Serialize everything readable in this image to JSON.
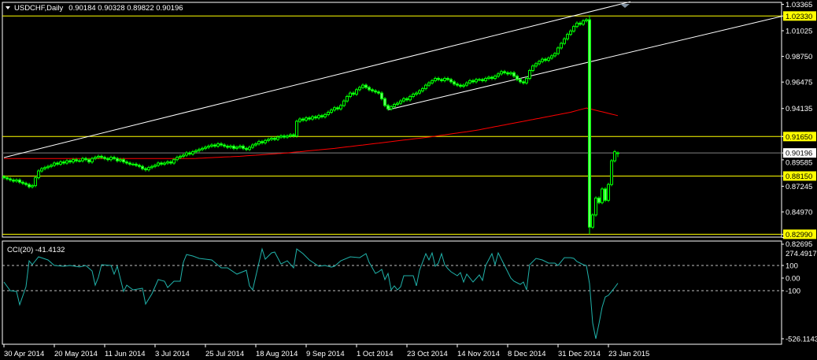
{
  "header": {
    "symbol_timeframe": "USDCHF,Daily",
    "ohlc": "0.90184 0.90328 0.89822 0.90196",
    "menu_icon": "triangle-down-icon"
  },
  "indicator": {
    "label": "CCI(20) -41.4132"
  },
  "colors": {
    "background": "#000000",
    "candle": "#00ff00",
    "moving_average": "#ff0000",
    "horizontal_levels": "#ffff00",
    "bid_line": "#808080",
    "channel": "#ffffff",
    "cci": "#20b2aa",
    "grid_levels": "#c0c0c0"
  },
  "chart_data": [
    {
      "type": "candlestick",
      "title": "USDCHF,Daily",
      "x_tick_labels": [
        "30 Apr 2014",
        "20 May 2014",
        "11 Jun 2014",
        "3 Jul 2014",
        "25 Jul 2014",
        "18 Aug 2014",
        "9 Sep 2014",
        "1 Oct 2014",
        "23 Oct 2014",
        "14 Nov 2014",
        "8 Dec 2014",
        "31 Dec 2014",
        "23 Jan 2015"
      ],
      "y_tick_labels": [
        "1.03365",
        "1.01025",
        "0.98750",
        "0.96475",
        "0.94135",
        "0.91650",
        "0.89585",
        "0.87245",
        "0.84970",
        "0.82695"
      ],
      "ylim": [
        0.82695,
        1.03365
      ],
      "closes": [
        0.88,
        0.879,
        0.878,
        0.877,
        0.878,
        0.876,
        0.875,
        0.874,
        0.872,
        0.873,
        0.88,
        0.886,
        0.888,
        0.889,
        0.89,
        0.891,
        0.893,
        0.892,
        0.894,
        0.893,
        0.895,
        0.894,
        0.896,
        0.895,
        0.895,
        0.897,
        0.896,
        0.894,
        0.897,
        0.898,
        0.899,
        0.898,
        0.897,
        0.896,
        0.898,
        0.897,
        0.895,
        0.896,
        0.894,
        0.893,
        0.892,
        0.892,
        0.891,
        0.89,
        0.888,
        0.887,
        0.889,
        0.89,
        0.891,
        0.893,
        0.892,
        0.893,
        0.894,
        0.893,
        0.896,
        0.898,
        0.899,
        0.9,
        0.902,
        0.901,
        0.903,
        0.904,
        0.905,
        0.906,
        0.907,
        0.908,
        0.909,
        0.908,
        0.91,
        0.909,
        0.908,
        0.907,
        0.908,
        0.906,
        0.907,
        0.908,
        0.906,
        0.905,
        0.907,
        0.909,
        0.91,
        0.912,
        0.911,
        0.913,
        0.914,
        0.915,
        0.914,
        0.916,
        0.917,
        0.916,
        0.917,
        0.918,
        0.917,
        0.93,
        0.932,
        0.931,
        0.933,
        0.932,
        0.934,
        0.933,
        0.935,
        0.934,
        0.936,
        0.938,
        0.94,
        0.942,
        0.941,
        0.944,
        0.948,
        0.952,
        0.955,
        0.954,
        0.958,
        0.96,
        0.962,
        0.96,
        0.958,
        0.957,
        0.956,
        0.955,
        0.95,
        0.944,
        0.941,
        0.943,
        0.945,
        0.946,
        0.948,
        0.95,
        0.949,
        0.952,
        0.954,
        0.955,
        0.957,
        0.959,
        0.962,
        0.964,
        0.966,
        0.968,
        0.967,
        0.966,
        0.968,
        0.967,
        0.965,
        0.963,
        0.962,
        0.961,
        0.962,
        0.964,
        0.966,
        0.965,
        0.967,
        0.967,
        0.966,
        0.968,
        0.969,
        0.968,
        0.97,
        0.972,
        0.974,
        0.973,
        0.972,
        0.973,
        0.97,
        0.967,
        0.965,
        0.964,
        0.968,
        0.975,
        0.979,
        0.981,
        0.983,
        0.985,
        0.984,
        0.986,
        0.988,
        0.99,
        0.995,
        0.999,
        1.003,
        1.007,
        1.01,
        1.014,
        1.017,
        1.016,
        1.019,
        1.02,
        0.8362,
        0.847,
        0.862,
        0.858,
        0.87,
        0.86,
        0.874,
        0.895,
        0.903,
        0.90196
      ],
      "last_candle": {
        "open": 0.90184,
        "high": 0.90328,
        "low": 0.89822,
        "close": 0.90196
      },
      "crash_candle": {
        "open": 1.02,
        "high": 1.024,
        "low": 0.83,
        "close": 0.8362
      },
      "moving_average": [
        [
          0,
          0.897
        ],
        [
          30,
          0.897
        ],
        [
          60,
          0.897
        ],
        [
          75,
          0.899
        ],
        [
          90,
          0.902
        ],
        [
          105,
          0.906
        ],
        [
          120,
          0.911
        ],
        [
          135,
          0.916
        ],
        [
          150,
          0.922
        ],
        [
          165,
          0.93
        ],
        [
          180,
          0.938
        ],
        [
          185,
          0.9418
        ],
        [
          195,
          0.935
        ]
      ],
      "horizontal_levels": [
        {
          "price": "1.02330",
          "value": 1.0233
        },
        {
          "price": "0.91650",
          "value": 0.9165
        },
        {
          "price": "0.88150",
          "value": 0.8815
        },
        {
          "price": "0.82990",
          "value": 0.8299
        }
      ],
      "bid_line": {
        "price": "0.90196",
        "value": 0.90196
      },
      "channel_lines": [
        [
          [
            0,
            0.8979
          ],
          [
            199,
            1.036
          ]
        ],
        [
          [
            122,
            0.9402
          ],
          [
            247,
            1.023
          ]
        ]
      ]
    },
    {
      "type": "line",
      "title": "CCI(20) -41.4132",
      "y_tick_labels": [
        "274.4917",
        "100",
        "0.00",
        "-100",
        "-526.1143"
      ],
      "ylim": [
        -526.1143,
        274.4917
      ],
      "levels": [
        100,
        -100
      ],
      "points": [
        [
          0,
          -31
        ],
        [
          2,
          -100
        ],
        [
          4,
          -106
        ],
        [
          5,
          -212
        ],
        [
          7,
          -69
        ],
        [
          8,
          137
        ],
        [
          9,
          106
        ],
        [
          11,
          169
        ],
        [
          14,
          144
        ],
        [
          16,
          100
        ],
        [
          19,
          94
        ],
        [
          21,
          100
        ],
        [
          24,
          88
        ],
        [
          26,
          100
        ],
        [
          28,
          56
        ],
        [
          29,
          -56
        ],
        [
          30,
          6
        ],
        [
          31,
          106
        ],
        [
          34,
          100
        ],
        [
          35,
          31
        ],
        [
          36,
          94
        ],
        [
          38,
          -106
        ],
        [
          39,
          -56
        ],
        [
          41,
          -94
        ],
        [
          44,
          -81
        ],
        [
          45,
          -206
        ],
        [
          47,
          -125
        ],
        [
          49,
          -12
        ],
        [
          51,
          -25
        ],
        [
          52,
          -75
        ],
        [
          54,
          -25
        ],
        [
          56,
          -25
        ],
        [
          57,
          125
        ],
        [
          58,
          187
        ],
        [
          60,
          175
        ],
        [
          62,
          156
        ],
        [
          66,
          144
        ],
        [
          69,
          81
        ],
        [
          71,
          81
        ],
        [
          74,
          31
        ],
        [
          77,
          62
        ],
        [
          78,
          -62
        ],
        [
          79,
          -94
        ],
        [
          82,
          231
        ],
        [
          83,
          150
        ],
        [
          85,
          200
        ],
        [
          86,
          206
        ],
        [
          88,
          112
        ],
        [
          90,
          137
        ],
        [
          92,
          81
        ],
        [
          93,
          231
        ],
        [
          95,
          194
        ],
        [
          97,
          144
        ],
        [
          100,
          94
        ],
        [
          102,
          100
        ],
        [
          104,
          87
        ],
        [
          105,
          94
        ],
        [
          107,
          137
        ],
        [
          110,
          169
        ],
        [
          113,
          162
        ],
        [
          115,
          194
        ],
        [
          116,
          125
        ],
        [
          117,
          81
        ],
        [
          118,
          37
        ],
        [
          119,
          50
        ],
        [
          120,
          69
        ],
        [
          121,
          -12
        ],
        [
          122,
          37
        ],
        [
          123,
          -94
        ],
        [
          124,
          -62
        ],
        [
          125,
          -94
        ],
        [
          126,
          -69
        ],
        [
          127,
          19
        ],
        [
          130,
          19
        ],
        [
          131,
          -62
        ],
        [
          132,
          62
        ],
        [
          134,
          194
        ],
        [
          135,
          144
        ],
        [
          136,
          200
        ],
        [
          137,
          94
        ],
        [
          138,
          119
        ],
        [
          139,
          194
        ],
        [
          140,
          106
        ],
        [
          141,
          75
        ],
        [
          142,
          50
        ],
        [
          144,
          19
        ],
        [
          145,
          44
        ],
        [
          146,
          -31
        ],
        [
          147,
          31
        ],
        [
          149,
          -31
        ],
        [
          151,
          25
        ],
        [
          152,
          -19
        ],
        [
          153,
          100
        ],
        [
          155,
          194
        ],
        [
          156,
          106
        ],
        [
          157,
          200
        ],
        [
          159,
          100
        ],
        [
          161,
          0
        ],
        [
          162,
          -25
        ],
        [
          164,
          -50
        ],
        [
          165,
          -31
        ],
        [
          166,
          -94
        ],
        [
          167,
          106
        ],
        [
          169,
          156
        ],
        [
          171,
          144
        ],
        [
          173,
          119
        ],
        [
          175,
          119
        ],
        [
          176,
          100
        ],
        [
          178,
          162
        ],
        [
          180,
          162
        ],
        [
          181,
          156
        ],
        [
          182,
          131
        ],
        [
          184,
          106
        ],
        [
          185,
          100
        ],
        [
          186,
          -44
        ],
        [
          187,
          -356
        ],
        [
          188,
          -481
        ],
        [
          189,
          -362
        ],
        [
          190,
          -231
        ],
        [
          191,
          -150
        ],
        [
          192,
          -137
        ],
        [
          193,
          -106
        ],
        [
          194,
          -75
        ],
        [
          195,
          -41.4132
        ]
      ]
    }
  ]
}
